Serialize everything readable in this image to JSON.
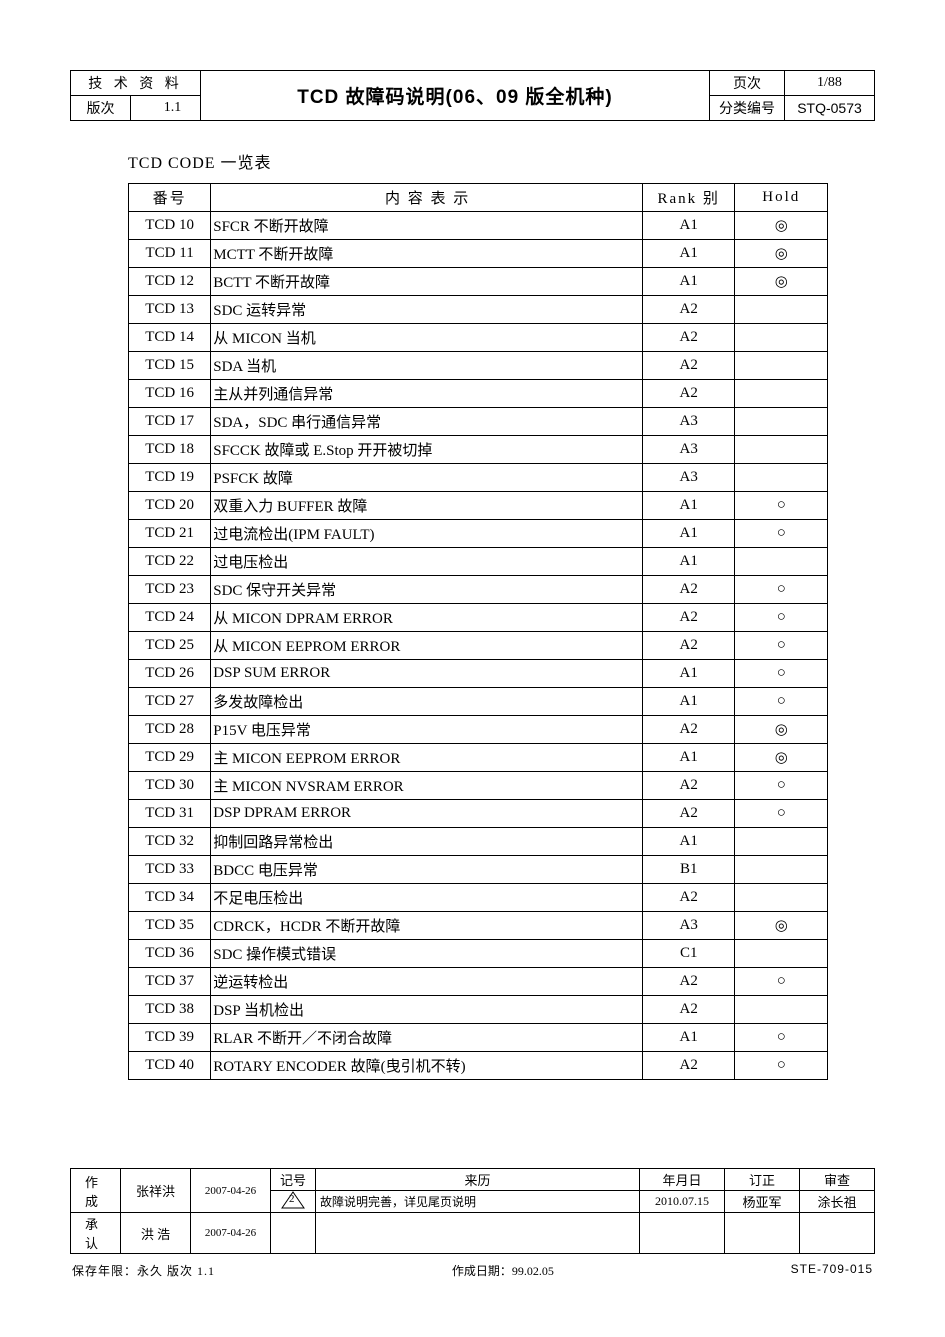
{
  "header": {
    "tech_label": "技 术 资 料",
    "version_label": "版次",
    "version_value": "1.1",
    "title": "TCD 故障码说明(06、09 版全机种)",
    "page_label": "页次",
    "page_value": "1/88",
    "class_label": "分类编号",
    "class_value": "STQ-0573"
  },
  "section_title": "TCD CODE 一览表",
  "table": {
    "headers": {
      "code": "番号",
      "desc": "内 容 表 示",
      "rank": "Rank 别",
      "hold": "Hold"
    },
    "rows": [
      {
        "code": "TCD 10",
        "desc": "SFCR 不断开故障",
        "rank": "A1",
        "hold": "◎"
      },
      {
        "code": "TCD 11",
        "desc": "MCTT 不断开故障",
        "rank": "A1",
        "hold": "◎"
      },
      {
        "code": "TCD 12",
        "desc": "BCTT 不断开故障",
        "rank": "A1",
        "hold": "◎"
      },
      {
        "code": "TCD 13",
        "desc": "SDC 运转异常",
        "rank": "A2",
        "hold": ""
      },
      {
        "code": "TCD 14",
        "desc": "从 MICON 当机",
        "rank": "A2",
        "hold": ""
      },
      {
        "code": "TCD 15",
        "desc": "SDA 当机",
        "rank": "A2",
        "hold": ""
      },
      {
        "code": "TCD 16",
        "desc": "主从并列通信异常",
        "rank": "A2",
        "hold": ""
      },
      {
        "code": "TCD 17",
        "desc": "SDA，SDC 串行通信异常",
        "rank": "A3",
        "hold": ""
      },
      {
        "code": "TCD 18",
        "desc": "SFCCK 故障或 E.Stop 开开被切掉",
        "rank": "A3",
        "hold": ""
      },
      {
        "code": "TCD 19",
        "desc": "PSFCK 故障",
        "rank": "A3",
        "hold": ""
      },
      {
        "code": "TCD 20",
        "desc": "双重入力 BUFFER 故障",
        "rank": "A1",
        "hold": "○"
      },
      {
        "code": "TCD 21",
        "desc": "过电流检出(IPM FAULT)",
        "rank": "A1",
        "hold": "○"
      },
      {
        "code": "TCD 22",
        "desc": "过电压检出",
        "rank": "A1",
        "hold": ""
      },
      {
        "code": "TCD 23",
        "desc": "SDC 保守开关异常",
        "rank": "A2",
        "hold": "○"
      },
      {
        "code": "TCD 24",
        "desc": "从 MICON DPRAM ERROR",
        "rank": "A2",
        "hold": "○"
      },
      {
        "code": "TCD 25",
        "desc": "从 MICON EEPROM ERROR",
        "rank": "A2",
        "hold": "○"
      },
      {
        "code": "TCD 26",
        "desc": "DSP SUM ERROR",
        "rank": "A1",
        "hold": "○"
      },
      {
        "code": "TCD 27",
        "desc": "多发故障检出",
        "rank": "A1",
        "hold": "○"
      },
      {
        "code": "TCD 28",
        "desc": "P15V 电压异常",
        "rank": "A2",
        "hold": "◎"
      },
      {
        "code": "TCD 29",
        "desc": "主 MICON EEPROM ERROR",
        "rank": "A1",
        "hold": "◎"
      },
      {
        "code": "TCD 30",
        "desc": "主 MICON NVSRAM ERROR",
        "rank": "A2",
        "hold": "○"
      },
      {
        "code": "TCD 31",
        "desc": "DSP DPRAM ERROR",
        "rank": "A2",
        "hold": "○"
      },
      {
        "code": "TCD 32",
        "desc": "抑制回路异常检出",
        "rank": "A1",
        "hold": ""
      },
      {
        "code": "TCD 33",
        "desc": "BDCC 电压异常",
        "rank": "B1",
        "hold": ""
      },
      {
        "code": "TCD 34",
        "desc": "不足电压检出",
        "rank": "A2",
        "hold": ""
      },
      {
        "code": "TCD 35",
        "desc": "CDRCK，HCDR 不断开故障",
        "rank": "A3",
        "hold": "◎"
      },
      {
        "code": "TCD 36",
        "desc": "SDC 操作模式错误",
        "rank": "C1",
        "hold": ""
      },
      {
        "code": "TCD 37",
        "desc": "逆运转检出",
        "rank": "A2",
        "hold": "○"
      },
      {
        "code": "TCD 38",
        "desc": "DSP 当机检出",
        "rank": "A2",
        "hold": ""
      },
      {
        "code": "TCD 39",
        "desc": "RLAR 不断开／不闭合故障",
        "rank": "A1",
        "hold": "○"
      },
      {
        "code": "TCD 40",
        "desc": "ROTARY ENCODER 故障(曳引机不转)",
        "rank": "A2",
        "hold": "○"
      }
    ]
  },
  "footer": {
    "created_label": "作 成",
    "created_by": "张祥洪",
    "created_date": "2007-04-26",
    "mark_label": "记号",
    "history_label": "来历",
    "date_label": "年月日",
    "revise_label": "订正",
    "review_label": "审查",
    "rev_num": "2",
    "rev_desc": "故障说明完善，详见尾页说明",
    "rev_date": "2010.07.15",
    "rev_by": "杨亚军",
    "rev_review": "涂长祖",
    "approve_label": "承 认",
    "approve_by": "洪  浩",
    "approve_date": "2007-04-26"
  },
  "bottom": {
    "left": "保存年限：永久    版次  1.1",
    "mid": "作成日期：99.02.05",
    "right": "STE-709-015"
  }
}
